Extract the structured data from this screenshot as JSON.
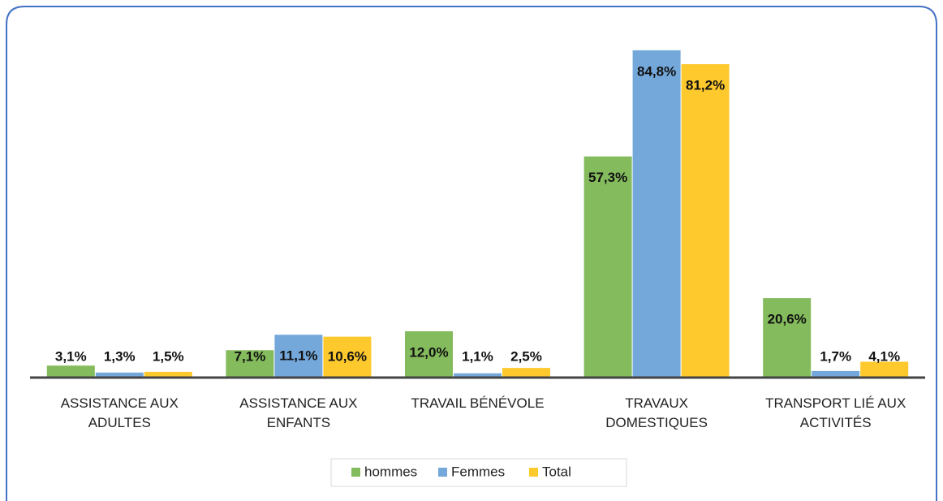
{
  "chart_data": {
    "type": "bar",
    "categories": [
      "ASSISTANCE AUX ADULTES",
      "ASSISTANCE AUX ENFANTS",
      "TRAVAIL BÉNÉVOLE",
      "TRAVAUX DOMESTIQUES",
      "TRANSPORT LIÉ AUX ACTIVITÉS"
    ],
    "series": [
      {
        "name": "hommes",
        "color": "#84bb5c",
        "values": [
          3.1,
          7.1,
          12.0,
          57.3,
          20.6
        ],
        "value_labels": [
          "3,1%",
          "7,1%",
          "12,0%",
          "57,3%",
          "20,6%"
        ]
      },
      {
        "name": "Femmes",
        "color": "#74a8db",
        "values": [
          1.3,
          11.1,
          1.1,
          84.8,
          1.7
        ],
        "value_labels": [
          "1,3%",
          "11,1%",
          "1,1%",
          "84,8%",
          "1,7%"
        ]
      },
      {
        "name": "Total",
        "color": "#fec92d",
        "values": [
          1.5,
          10.6,
          2.5,
          81.2,
          4.1
        ],
        "value_labels": [
          "1,5%",
          "10,6%",
          "2,5%",
          "81,2%",
          "4,1%"
        ]
      }
    ],
    "ylim": [
      0,
      85
    ],
    "legend": "bottom"
  }
}
